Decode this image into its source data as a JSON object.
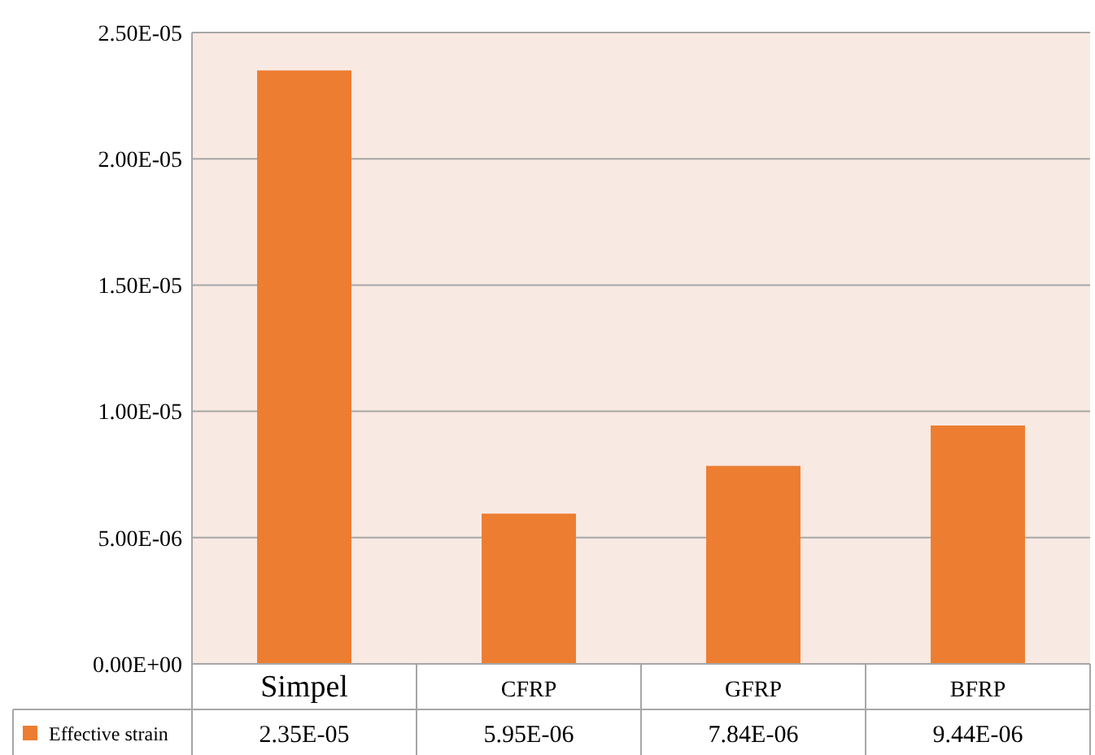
{
  "chart_data": {
    "type": "bar",
    "categories": [
      "Simpel",
      "CFRP",
      "GFRP",
      "BFRP"
    ],
    "series": [
      {
        "name": "Effective strain",
        "color": "#ed7d31",
        "values": [
          2.35e-05,
          5.95e-06,
          7.84e-06,
          9.44e-06
        ],
        "value_labels": [
          "2.35E-05",
          "5.95E-06",
          "7.84E-06",
          "9.44E-06"
        ]
      }
    ],
    "ylim": [
      0,
      2.5e-05
    ],
    "yticks": [
      {
        "value": 0,
        "label": "0.00E+00"
      },
      {
        "value": 5e-06,
        "label": "5.00E-06"
      },
      {
        "value": 1e-05,
        "label": "1.00E-05"
      },
      {
        "value": 1.5e-05,
        "label": "1.50E-05"
      },
      {
        "value": 2e-05,
        "label": "2.00E-05"
      },
      {
        "value": 2.5e-05,
        "label": "2.50E-05"
      }
    ],
    "grid": "y",
    "legend": "bottom"
  }
}
